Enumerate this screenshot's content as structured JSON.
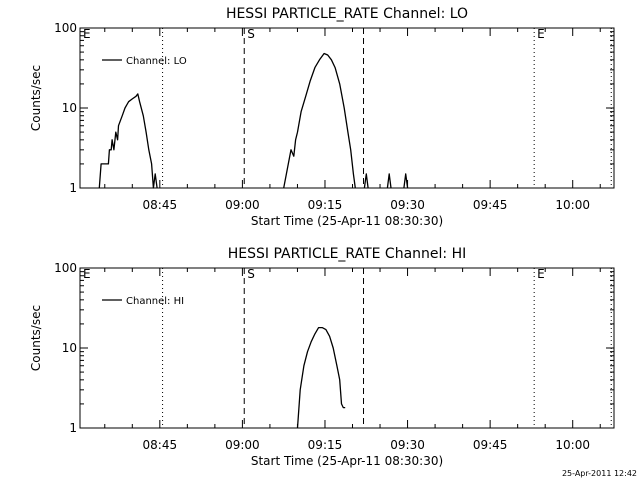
{
  "footer_timestamp": "25-Apr-2011 12:42",
  "chart_data": [
    {
      "type": "line",
      "title": "HESSI PARTICLE_RATE Channel: LO",
      "xlabel": "Start Time (25-Apr-11 08:30:30)",
      "ylabel": "Counts/sec",
      "y_scale": "log",
      "ylim": [
        1,
        100
      ],
      "xlim": [
        "08:30:30",
        "10:07:30"
      ],
      "x_ticks": [
        "08:45",
        "09:00",
        "09:15",
        "09:30",
        "09:45",
        "10:00"
      ],
      "y_ticks": [
        "1",
        "10",
        "100"
      ],
      "legend": {
        "placement": "top-left",
        "entries": [
          "Channel: LO"
        ]
      },
      "markers": [
        {
          "label": "E",
          "time": "08:30:30",
          "style": "dotted"
        },
        {
          "label": "",
          "time": "08:45:30",
          "style": "dotted"
        },
        {
          "label": "S",
          "time": "09:00:20",
          "style": "dashed"
        },
        {
          "label": "",
          "time": "09:22:00",
          "style": "dashed"
        },
        {
          "label": "E",
          "time": "09:53:00",
          "style": "dotted"
        },
        {
          "label": "",
          "time": "10:07:00",
          "style": "dotted"
        }
      ],
      "series": [
        {
          "name": "Channel: LO",
          "segments": [
            [
              [
                "08:34:00",
                1
              ],
              [
                "08:34:20",
                2
              ],
              [
                "08:35:40",
                2
              ],
              [
                "08:35:50",
                3
              ],
              [
                "08:36:10",
                3
              ],
              [
                "08:36:20",
                4
              ],
              [
                "08:36:40",
                3
              ],
              [
                "08:37:00",
                5
              ],
              [
                "08:37:20",
                4
              ],
              [
                "08:37:30",
                6
              ],
              [
                "08:38:10",
                8
              ],
              [
                "08:38:40",
                10
              ],
              [
                "08:39:20",
                12
              ],
              [
                "08:40:00",
                13
              ],
              [
                "08:40:40",
                14
              ],
              [
                "08:41:00",
                15
              ],
              [
                "08:41:20",
                12
              ],
              [
                "08:42:00",
                8
              ],
              [
                "08:42:30",
                5
              ],
              [
                "08:43:00",
                3
              ],
              [
                "08:43:30",
                2
              ],
              [
                "08:43:50",
                1
              ],
              [
                "08:44:10",
                1.5
              ],
              [
                "08:44:30",
                1
              ]
            ],
            [
              [
                "09:07:30",
                1
              ],
              [
                "09:08:00",
                1.5
              ],
              [
                "09:08:20",
                2
              ],
              [
                "09:08:50",
                3
              ],
              [
                "09:09:20",
                2.5
              ],
              [
                "09:09:40",
                4
              ],
              [
                "09:10:00",
                5
              ],
              [
                "09:10:40",
                9
              ],
              [
                "09:11:30",
                14
              ],
              [
                "09:12:20",
                22
              ],
              [
                "09:13:10",
                32
              ],
              [
                "09:14:00",
                40
              ],
              [
                "09:14:50",
                48
              ],
              [
                "09:15:30",
                46
              ],
              [
                "09:16:10",
                40
              ],
              [
                "09:16:50",
                32
              ],
              [
                "09:17:40",
                20
              ],
              [
                "09:18:30",
                10
              ],
              [
                "09:19:10",
                5
              ],
              [
                "09:19:40",
                3
              ],
              [
                "09:20:10",
                1.5
              ],
              [
                "09:20:30",
                1
              ]
            ],
            [
              [
                "09:22:10",
                1
              ],
              [
                "09:22:30",
                1.5
              ],
              [
                "09:22:50",
                1
              ]
            ],
            [
              [
                "09:26:20",
                1
              ],
              [
                "09:26:40",
                1.5
              ],
              [
                "09:27:00",
                1
              ]
            ],
            [
              [
                "09:29:20",
                1
              ],
              [
                "09:29:40",
                1.5
              ],
              [
                "09:30:00",
                1
              ]
            ]
          ]
        }
      ]
    },
    {
      "type": "line",
      "title": "HESSI PARTICLE_RATE Channel: HI",
      "xlabel": "Start Time (25-Apr-11 08:30:30)",
      "ylabel": "Counts/sec",
      "y_scale": "log",
      "ylim": [
        1,
        100
      ],
      "xlim": [
        "08:30:30",
        "10:07:30"
      ],
      "x_ticks": [
        "08:45",
        "09:00",
        "09:15",
        "09:30",
        "09:45",
        "10:00"
      ],
      "y_ticks": [
        "1",
        "10",
        "100"
      ],
      "legend": {
        "placement": "top-left",
        "entries": [
          "Channel: HI"
        ]
      },
      "markers": [
        {
          "label": "E",
          "time": "08:30:30",
          "style": "dotted"
        },
        {
          "label": "",
          "time": "08:45:30",
          "style": "dotted"
        },
        {
          "label": "S",
          "time": "09:00:20",
          "style": "dashed"
        },
        {
          "label": "",
          "time": "09:22:00",
          "style": "dashed"
        },
        {
          "label": "E",
          "time": "09:53:00",
          "style": "dotted"
        },
        {
          "label": "",
          "time": "10:07:00",
          "style": "dotted"
        }
      ],
      "series": [
        {
          "name": "Channel: HI",
          "segments": [
            [
              [
                "09:10:00",
                1
              ],
              [
                "09:10:30",
                3
              ],
              [
                "09:11:10",
                6
              ],
              [
                "09:11:50",
                9
              ],
              [
                "09:12:30",
                12
              ],
              [
                "09:13:10",
                15
              ],
              [
                "09:13:50",
                18
              ],
              [
                "09:14:30",
                18
              ],
              [
                "09:15:10",
                17
              ],
              [
                "09:15:50",
                14
              ],
              [
                "09:16:30",
                10
              ],
              [
                "09:17:10",
                6
              ],
              [
                "09:17:40",
                4
              ],
              [
                "09:18:00",
                2
              ],
              [
                "09:18:20",
                1.8
              ],
              [
                "09:18:40",
                1.8
              ]
            ]
          ]
        }
      ]
    }
  ]
}
